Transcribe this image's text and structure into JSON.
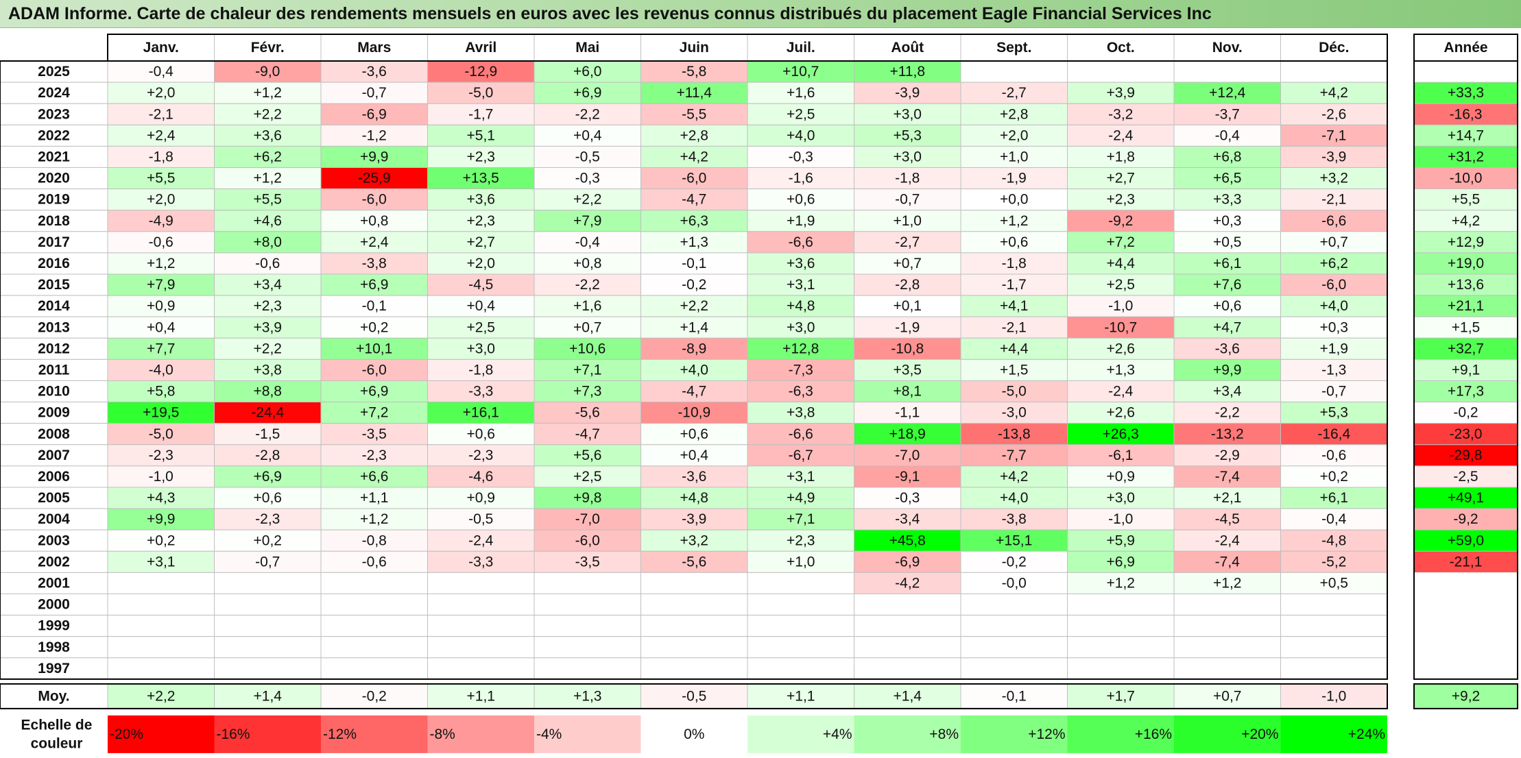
{
  "title": "ADAM Informe. Carte de chaleur des rendements mensuels en euros avec les revenus connus distribués du placement Eagle Financial Services Inc",
  "year_header": "Année",
  "average_label": "Moy.",
  "scale_label_line1": "Echelle de",
  "scale_label_line2": "couleur",
  "colors": {
    "negative_max": "#ff0000",
    "neutral": "#ffffff",
    "positive_max": "#00ff00",
    "grid": "#bfbfbf",
    "border": "#000000"
  },
  "chart_data": {
    "type": "heatmap",
    "title": "ADAM Informe. Carte de chaleur des rendements mensuels en euros avec les revenus connus distribués du placement Eagle Financial Services Inc",
    "months": [
      "Janv.",
      "Févr.",
      "Mars",
      "Avril",
      "Mai",
      "Juin",
      "Juil.",
      "Août",
      "Sept.",
      "Oct.",
      "Nov.",
      "Déc."
    ],
    "rows": [
      {
        "year": "2025",
        "values": [
          "-0,4",
          "-9,0",
          "-3,6",
          "-12,9",
          "+6,0",
          "-5,8",
          "+10,7",
          "+11,8",
          "",
          "",
          "",
          ""
        ],
        "annual": ""
      },
      {
        "year": "2024",
        "values": [
          "+2,0",
          "+1,2",
          "-0,7",
          "-5,0",
          "+6,9",
          "+11,4",
          "+1,6",
          "-3,9",
          "-2,7",
          "+3,9",
          "+12,4",
          "+4,2"
        ],
        "annual": "+33,3"
      },
      {
        "year": "2023",
        "values": [
          "-2,1",
          "+2,2",
          "-6,9",
          "-1,7",
          "-2,2",
          "-5,5",
          "+2,5",
          "+3,0",
          "+2,8",
          "-3,2",
          "-3,7",
          "-2,6"
        ],
        "annual": "-16,3"
      },
      {
        "year": "2022",
        "values": [
          "+2,4",
          "+3,6",
          "-1,2",
          "+5,1",
          "+0,4",
          "+2,8",
          "+4,0",
          "+5,3",
          "+2,0",
          "-2,4",
          "-0,4",
          "-7,1"
        ],
        "annual": "+14,7"
      },
      {
        "year": "2021",
        "values": [
          "-1,8",
          "+6,2",
          "+9,9",
          "+2,3",
          "-0,5",
          "+4,2",
          "-0,3",
          "+3,0",
          "+1,0",
          "+1,8",
          "+6,8",
          "-3,9"
        ],
        "annual": "+31,2"
      },
      {
        "year": "2020",
        "values": [
          "+5,5",
          "+1,2",
          "-25,9",
          "+13,5",
          "-0,3",
          "-6,0",
          "-1,6",
          "-1,8",
          "-1,9",
          "+2,7",
          "+6,5",
          "+3,2"
        ],
        "annual": "-10,0"
      },
      {
        "year": "2019",
        "values": [
          "+2,0",
          "+5,5",
          "-6,0",
          "+3,6",
          "+2,2",
          "-4,7",
          "+0,6",
          "-0,7",
          "+0,0",
          "+2,3",
          "+3,3",
          "-2,1"
        ],
        "annual": "+5,5"
      },
      {
        "year": "2018",
        "values": [
          "-4,9",
          "+4,6",
          "+0,8",
          "+2,3",
          "+7,9",
          "+6,3",
          "+1,9",
          "+1,0",
          "+1,2",
          "-9,2",
          "+0,3",
          "-6,6"
        ],
        "annual": "+4,2"
      },
      {
        "year": "2017",
        "values": [
          "-0,6",
          "+8,0",
          "+2,4",
          "+2,7",
          "-0,4",
          "+1,3",
          "-6,6",
          "-2,7",
          "+0,6",
          "+7,2",
          "+0,5",
          "+0,7"
        ],
        "annual": "+12,9"
      },
      {
        "year": "2016",
        "values": [
          "+1,2",
          "-0,6",
          "-3,8",
          "+2,0",
          "+0,8",
          "-0,1",
          "+3,6",
          "+0,7",
          "-1,8",
          "+4,4",
          "+6,1",
          "+6,2"
        ],
        "annual": "+19,0"
      },
      {
        "year": "2015",
        "values": [
          "+7,9",
          "+3,4",
          "+6,9",
          "-4,5",
          "-2,2",
          "-0,2",
          "+3,1",
          "-2,8",
          "-1,7",
          "+2,5",
          "+7,6",
          "-6,0"
        ],
        "annual": "+13,6"
      },
      {
        "year": "2014",
        "values": [
          "+0,9",
          "+2,3",
          "-0,1",
          "+0,4",
          "+1,6",
          "+2,2",
          "+4,8",
          "+0,1",
          "+4,1",
          "-1,0",
          "+0,6",
          "+4,0"
        ],
        "annual": "+21,1"
      },
      {
        "year": "2013",
        "values": [
          "+0,4",
          "+3,9",
          "+0,2",
          "+2,5",
          "+0,7",
          "+1,4",
          "+3,0",
          "-1,9",
          "-2,1",
          "-10,7",
          "+4,7",
          "+0,3"
        ],
        "annual": "+1,5"
      },
      {
        "year": "2012",
        "values": [
          "+7,7",
          "+2,2",
          "+10,1",
          "+3,0",
          "+10,6",
          "-8,9",
          "+12,8",
          "-10,8",
          "+4,4",
          "+2,6",
          "-3,6",
          "+1,9"
        ],
        "annual": "+32,7"
      },
      {
        "year": "2011",
        "values": [
          "-4,0",
          "+3,8",
          "-6,0",
          "-1,8",
          "+7,1",
          "+4,0",
          "-7,3",
          "+3,5",
          "+1,5",
          "+1,3",
          "+9,9",
          "-1,3"
        ],
        "annual": "+9,1"
      },
      {
        "year": "2010",
        "values": [
          "+5,8",
          "+8,8",
          "+6,9",
          "-3,3",
          "+7,3",
          "-4,7",
          "-6,3",
          "+8,1",
          "-5,0",
          "-2,4",
          "+3,4",
          "-0,7"
        ],
        "annual": "+17,3"
      },
      {
        "year": "2009",
        "values": [
          "+19,5",
          "-24,4",
          "+7,2",
          "+16,1",
          "-5,6",
          "-10,9",
          "+3,8",
          "-1,1",
          "-3,0",
          "+2,6",
          "-2,2",
          "+5,3"
        ],
        "annual": "-0,2"
      },
      {
        "year": "2008",
        "values": [
          "-5,0",
          "-1,5",
          "-3,5",
          "+0,6",
          "-4,7",
          "+0,6",
          "-6,6",
          "+18,9",
          "-13,8",
          "+26,3",
          "-13,2",
          "-16,4"
        ],
        "annual": "-23,0"
      },
      {
        "year": "2007",
        "values": [
          "-2,3",
          "-2,8",
          "-2,3",
          "-2,3",
          "+5,6",
          "+0,4",
          "-6,7",
          "-7,0",
          "-7,7",
          "-6,1",
          "-2,9",
          "-0,6"
        ],
        "annual": "-29,8"
      },
      {
        "year": "2006",
        "values": [
          "-1,0",
          "+6,9",
          "+6,6",
          "-4,6",
          "+2,5",
          "-3,6",
          "+3,1",
          "-9,1",
          "+4,2",
          "+0,9",
          "-7,4",
          "+0,2"
        ],
        "annual": "-2,5"
      },
      {
        "year": "2005",
        "values": [
          "+4,3",
          "+0,6",
          "+1,1",
          "+0,9",
          "+9,8",
          "+4,8",
          "+4,9",
          "-0,3",
          "+4,0",
          "+3,0",
          "+2,1",
          "+6,1"
        ],
        "annual": "+49,1"
      },
      {
        "year": "2004",
        "values": [
          "+9,9",
          "-2,3",
          "+1,2",
          "-0,5",
          "-7,0",
          "-3,9",
          "+7,1",
          "-3,4",
          "-3,8",
          "-1,0",
          "-4,5",
          "-0,4"
        ],
        "annual": "-9,2"
      },
      {
        "year": "2003",
        "values": [
          "+0,2",
          "+0,2",
          "-0,8",
          "-2,4",
          "-6,0",
          "+3,2",
          "+2,3",
          "+45,8",
          "+15,1",
          "+5,9",
          "-2,4",
          "-4,8"
        ],
        "annual": "+59,0"
      },
      {
        "year": "2002",
        "values": [
          "+3,1",
          "-0,7",
          "-0,6",
          "-3,3",
          "-3,5",
          "-5,6",
          "+1,0",
          "-6,9",
          "-0,2",
          "+6,9",
          "-7,4",
          "-5,2"
        ],
        "annual": "-21,1"
      },
      {
        "year": "2001",
        "values": [
          "",
          "",
          "",
          "",
          "",
          "",
          "",
          "-4,2",
          "-0,0",
          "+1,2",
          "+1,2",
          "+0,5"
        ],
        "annual": ""
      },
      {
        "year": "2000",
        "values": [
          "",
          "",
          "",
          "",
          "",
          "",
          "",
          "",
          "",
          "",
          "",
          ""
        ],
        "annual": ""
      },
      {
        "year": "1999",
        "values": [
          "",
          "",
          "",
          "",
          "",
          "",
          "",
          "",
          "",
          "",
          "",
          ""
        ],
        "annual": ""
      },
      {
        "year": "1998",
        "values": [
          "",
          "",
          "",
          "",
          "",
          "",
          "",
          "",
          "",
          "",
          "",
          ""
        ],
        "annual": ""
      },
      {
        "year": "1997",
        "values": [
          "",
          "",
          "",
          "",
          "",
          "",
          "",
          "",
          "",
          "",
          "",
          ""
        ],
        "annual": ""
      }
    ],
    "average": {
      "values": [
        "+2,2",
        "+1,4",
        "-0,2",
        "+1,1",
        "+1,3",
        "-0,5",
        "+1,1",
        "+1,4",
        "-0,1",
        "+1,7",
        "+0,7",
        "-1,0"
      ],
      "annual": "+9,2"
    },
    "color_scale": {
      "labels": [
        "-20%",
        "-16%",
        "-12%",
        "-8%",
        "-4%",
        "0%",
        "+4%",
        "+8%",
        "+12%",
        "+16%",
        "+20%",
        "+24%"
      ],
      "values": [
        -20,
        -16,
        -12,
        -8,
        -4,
        0,
        4,
        8,
        12,
        16,
        20,
        24
      ]
    }
  }
}
